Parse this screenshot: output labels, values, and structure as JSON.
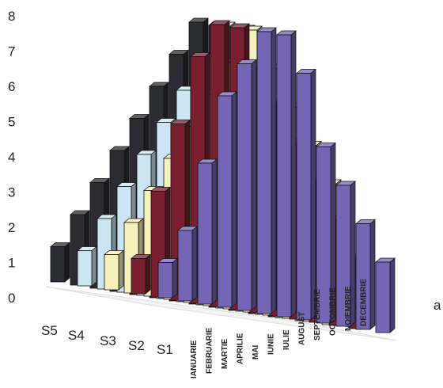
{
  "chart_data": {
    "type": "bar",
    "title": "",
    "xlabel": "",
    "ylabel": "",
    "ylim": [
      0,
      8
    ],
    "yticks": [
      "0",
      "1",
      "2",
      "3",
      "4",
      "5",
      "6",
      "7",
      "8"
    ],
    "categories": [
      "IANUARIE",
      "FEBRUARIE",
      "MARTIE",
      "APRILIE",
      "MAI",
      "IUNIE",
      "IULIE",
      "AUGUST",
      "SEPTEMBRIE",
      "OCTOMBRIE",
      "NOIEMBRIE",
      "DECEMBRIE"
    ],
    "series": [
      {
        "name": "S1",
        "values": [
          1,
          2,
          4,
          6,
          7,
          8,
          8,
          7,
          5,
          4,
          3,
          2
        ],
        "color": "#7466b4"
      },
      {
        "name": "S2",
        "values": [
          1,
          3,
          5,
          7,
          8,
          8,
          7,
          6,
          5,
          4,
          3,
          2
        ],
        "color": "#7a1f30"
      },
      {
        "name": "S3",
        "values": [
          1,
          2,
          3,
          4,
          5,
          6,
          7,
          8,
          7,
          6,
          5,
          4
        ],
        "color": "#f6f0bc"
      },
      {
        "name": "S4",
        "values": [
          1,
          2,
          3,
          4,
          5,
          6,
          7,
          8,
          8,
          7,
          6,
          5
        ],
        "color": "#cbe6f2"
      },
      {
        "name": "S5",
        "values": [
          1,
          2,
          3,
          4,
          5,
          6,
          7,
          8,
          8,
          7,
          6,
          5
        ],
        "color": "#2b2b34"
      }
    ],
    "grid": false,
    "extra_label": "a"
  }
}
